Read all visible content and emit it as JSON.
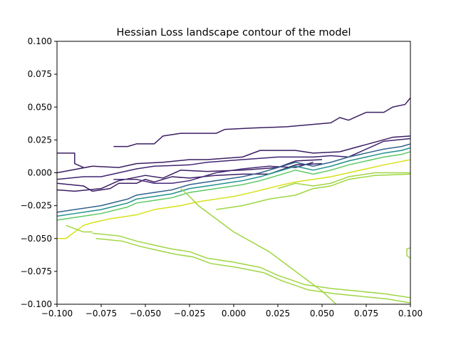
{
  "chart_data": {
    "type": "contour",
    "title": "Hessian Loss landscape contour of the model",
    "xlabel": "",
    "ylabel": "",
    "xlim": [
      -0.1,
      0.1
    ],
    "ylim": [
      -0.1,
      0.1
    ],
    "x_ticks": [
      -0.1,
      -0.075,
      -0.05,
      -0.025,
      0.0,
      0.025,
      0.05,
      0.075,
      0.1
    ],
    "x_tick_labels": [
      "−0.100",
      "−0.075",
      "−0.050",
      "−0.025",
      "0.000",
      "0.025",
      "0.050",
      "0.075",
      "0.100"
    ],
    "y_ticks": [
      0.1,
      0.075,
      0.05,
      0.025,
      0.0,
      -0.025,
      -0.05,
      -0.075,
      -0.1
    ],
    "y_tick_labels": [
      "0.100",
      "0.075",
      "0.050",
      "0.025",
      "0.000",
      "−0.025",
      "−0.050",
      "−0.075",
      "−0.100"
    ],
    "grid": false,
    "colormap": "viridis",
    "colors": {
      "dark_purple": "#3b1e63",
      "purple": "#472a7a",
      "blue": "#33638d",
      "teal": "#21918c",
      "green": "#5ec962",
      "yellow_green": "#9fd642",
      "yellow": "#d5e21a"
    },
    "contours": [
      {
        "color": "#3b1e63",
        "points": [
          [
            -0.1,
            0.015
          ],
          [
            -0.09,
            0.015
          ],
          [
            -0.09,
            0.007
          ],
          [
            -0.085,
            0.004
          ]
        ]
      },
      {
        "color": "#3b1e63",
        "points": [
          [
            -0.068,
            0.02
          ],
          [
            -0.068,
            0.02
          ],
          [
            -0.065,
            0.02
          ],
          [
            -0.06,
            0.02
          ],
          [
            -0.055,
            0.022
          ],
          [
            -0.045,
            0.022
          ],
          [
            -0.04,
            0.028
          ],
          [
            -0.03,
            0.03
          ],
          [
            -0.01,
            0.03
          ],
          [
            -0.005,
            0.033
          ],
          [
            0.01,
            0.034
          ],
          [
            0.03,
            0.035
          ],
          [
            0.055,
            0.038
          ],
          [
            0.06,
            0.042
          ],
          [
            0.065,
            0.04
          ],
          [
            0.075,
            0.046
          ],
          [
            0.085,
            0.046
          ],
          [
            0.09,
            0.05
          ],
          [
            0.097,
            0.052
          ],
          [
            0.1,
            0.057
          ]
        ]
      },
      {
        "color": "#3b1e63",
        "points": [
          [
            -0.1,
            0.0
          ],
          [
            -0.08,
            0.005
          ],
          [
            -0.065,
            0.004
          ],
          [
            -0.055,
            0.007
          ],
          [
            -0.04,
            0.008
          ],
          [
            -0.025,
            0.01
          ],
          [
            -0.015,
            0.01
          ],
          [
            0.005,
            0.012
          ],
          [
            0.015,
            0.017
          ],
          [
            0.035,
            0.017
          ],
          [
            0.045,
            0.015
          ],
          [
            0.06,
            0.016
          ],
          [
            0.09,
            0.027
          ],
          [
            0.1,
            0.028
          ]
        ]
      },
      {
        "color": "#3f2372",
        "points": [
          [
            -0.1,
            -0.005
          ],
          [
            -0.085,
            -0.003
          ],
          [
            -0.075,
            -0.003
          ],
          [
            -0.065,
            0.0
          ],
          [
            -0.055,
            0.003
          ],
          [
            -0.045,
            0.005
          ],
          [
            -0.025,
            0.006
          ],
          [
            -0.015,
            0.008
          ],
          [
            0.005,
            0.01
          ],
          [
            0.025,
            0.012
          ],
          [
            0.045,
            0.012
          ],
          [
            0.055,
            0.013
          ],
          [
            0.065,
            0.012
          ],
          [
            0.085,
            0.024
          ],
          [
            0.1,
            0.026
          ]
        ]
      },
      {
        "color": "#3b1e63",
        "points": [
          [
            -0.1,
            -0.008
          ],
          [
            -0.085,
            -0.01
          ],
          [
            -0.08,
            -0.014
          ],
          [
            -0.07,
            -0.012
          ],
          [
            -0.065,
            -0.008
          ],
          [
            -0.055,
            -0.008
          ],
          [
            -0.05,
            -0.005
          ],
          [
            -0.045,
            -0.007
          ],
          [
            -0.035,
            -0.003
          ],
          [
            -0.025,
            -0.004
          ],
          [
            -0.01,
            -0.002
          ],
          [
            0.005,
            -0.001
          ],
          [
            0.02,
            -0.001
          ],
          [
            0.035,
            0.006
          ],
          [
            0.05,
            0.007
          ]
        ]
      },
      {
        "color": "#3b1e63",
        "points": [
          [
            -0.1,
            -0.013
          ],
          [
            -0.09,
            -0.014
          ],
          [
            -0.075,
            -0.012
          ],
          [
            -0.065,
            -0.006
          ],
          [
            -0.05,
            -0.002
          ],
          [
            -0.04,
            -0.004
          ],
          [
            -0.03,
            0.002
          ],
          [
            -0.015,
            0.001
          ],
          [
            0.005,
            0.002
          ],
          [
            0.025,
            0.004
          ],
          [
            0.035,
            0.009
          ],
          [
            0.05,
            0.01
          ]
        ]
      },
      {
        "color": "#472a7a",
        "points": [
          [
            -0.068,
            -0.005
          ],
          [
            -0.055,
            -0.005
          ],
          [
            -0.045,
            -0.008
          ],
          [
            -0.035,
            -0.008
          ],
          [
            -0.025,
            -0.006
          ],
          [
            -0.01,
            0.0
          ],
          [
            0.005,
            0.003
          ],
          [
            0.02,
            0.005
          ],
          [
            0.035,
            0.004
          ],
          [
            0.045,
            0.008
          ]
        ]
      },
      {
        "color": "#33638d",
        "points": [
          [
            -0.1,
            -0.03
          ],
          [
            -0.09,
            -0.028
          ],
          [
            -0.075,
            -0.025
          ],
          [
            -0.06,
            -0.02
          ],
          [
            -0.055,
            -0.017
          ],
          [
            -0.045,
            -0.015
          ],
          [
            -0.035,
            -0.013
          ],
          [
            -0.025,
            -0.009
          ],
          [
            -0.015,
            -0.007
          ],
          [
            0.005,
            -0.003
          ],
          [
            0.015,
            -0.0
          ],
          [
            0.025,
            0.004
          ],
          [
            0.035,
            0.008
          ],
          [
            0.045,
            0.005
          ],
          [
            0.055,
            0.008
          ],
          [
            0.065,
            0.012
          ],
          [
            0.075,
            0.015
          ],
          [
            0.085,
            0.018
          ],
          [
            0.095,
            0.02
          ],
          [
            0.1,
            0.022
          ]
        ]
      },
      {
        "color": "#21918c",
        "points": [
          [
            -0.1,
            -0.033
          ],
          [
            -0.09,
            -0.031
          ],
          [
            -0.075,
            -0.028
          ],
          [
            -0.06,
            -0.023
          ],
          [
            -0.055,
            -0.02
          ],
          [
            -0.045,
            -0.018
          ],
          [
            -0.035,
            -0.016
          ],
          [
            -0.025,
            -0.012
          ],
          [
            -0.015,
            -0.01
          ],
          [
            0.005,
            -0.006
          ],
          [
            0.015,
            -0.003
          ],
          [
            0.025,
            0.001
          ],
          [
            0.035,
            0.005
          ],
          [
            0.045,
            0.002
          ],
          [
            0.055,
            0.005
          ],
          [
            0.065,
            0.009
          ],
          [
            0.075,
            0.012
          ],
          [
            0.085,
            0.015
          ],
          [
            0.095,
            0.017
          ],
          [
            0.1,
            0.019
          ]
        ]
      },
      {
        "color": "#5ec962",
        "points": [
          [
            -0.1,
            -0.036
          ],
          [
            -0.09,
            -0.034
          ],
          [
            -0.075,
            -0.031
          ],
          [
            -0.06,
            -0.026
          ],
          [
            -0.055,
            -0.023
          ],
          [
            -0.045,
            -0.021
          ],
          [
            -0.035,
            -0.019
          ],
          [
            -0.025,
            -0.015
          ],
          [
            -0.015,
            -0.013
          ],
          [
            0.005,
            -0.009
          ],
          [
            0.015,
            -0.006
          ],
          [
            0.025,
            -0.002
          ],
          [
            0.035,
            0.002
          ],
          [
            0.045,
            -0.001
          ],
          [
            0.055,
            0.002
          ],
          [
            0.065,
            0.006
          ],
          [
            0.075,
            0.009
          ],
          [
            0.085,
            0.012
          ],
          [
            0.095,
            0.014
          ],
          [
            0.1,
            0.016
          ]
        ]
      },
      {
        "color": "#d5e21a",
        "points": [
          [
            -0.1,
            -0.05
          ],
          [
            -0.095,
            -0.05
          ],
          [
            -0.09,
            -0.045
          ],
          [
            -0.085,
            -0.04
          ],
          [
            -0.08,
            -0.038
          ],
          [
            -0.07,
            -0.035
          ],
          [
            -0.055,
            -0.032
          ],
          [
            -0.045,
            -0.028
          ],
          [
            -0.03,
            -0.025
          ],
          [
            -0.02,
            -0.022
          ],
          [
            -0.01,
            -0.02
          ],
          [
            0.0,
            -0.018
          ],
          [
            0.01,
            -0.015
          ],
          [
            0.025,
            -0.01
          ],
          [
            0.035,
            -0.007
          ],
          [
            0.045,
            -0.005
          ],
          [
            0.055,
            -0.003
          ],
          [
            0.065,
            0.0
          ],
          [
            0.075,
            0.003
          ],
          [
            0.085,
            0.006
          ],
          [
            0.1,
            0.01
          ]
        ]
      },
      {
        "color": "#9fd642",
        "points": [
          [
            -0.095,
            -0.04
          ],
          [
            -0.085,
            -0.045
          ],
          [
            -0.08,
            -0.045
          ]
        ]
      },
      {
        "color": "#9fd642",
        "points": [
          [
            -0.03,
            -0.012
          ],
          [
            -0.025,
            -0.018
          ],
          [
            -0.02,
            -0.025
          ],
          [
            -0.015,
            -0.03
          ],
          [
            0.0,
            -0.045
          ],
          [
            0.02,
            -0.06
          ],
          [
            0.03,
            -0.07
          ],
          [
            0.04,
            -0.08
          ],
          [
            0.05,
            -0.09
          ],
          [
            0.058,
            -0.1
          ]
        ]
      },
      {
        "color": "#9fd642",
        "points": [
          [
            -0.08,
            -0.046
          ],
          [
            -0.065,
            -0.048
          ],
          [
            -0.055,
            -0.052
          ],
          [
            -0.045,
            -0.055
          ],
          [
            -0.035,
            -0.058
          ],
          [
            -0.025,
            -0.06
          ],
          [
            -0.015,
            -0.065
          ],
          [
            0.0,
            -0.068
          ],
          [
            0.015,
            -0.072
          ],
          [
            0.025,
            -0.078
          ],
          [
            0.04,
            -0.085
          ],
          [
            0.055,
            -0.088
          ],
          [
            0.07,
            -0.09
          ],
          [
            0.085,
            -0.092
          ],
          [
            0.1,
            -0.095
          ]
        ]
      },
      {
        "color": "#9fd642",
        "points": [
          [
            -0.078,
            -0.05
          ],
          [
            -0.063,
            -0.052
          ],
          [
            -0.053,
            -0.056
          ],
          [
            -0.043,
            -0.059
          ],
          [
            -0.033,
            -0.062
          ],
          [
            -0.023,
            -0.064
          ],
          [
            -0.013,
            -0.069
          ],
          [
            0.002,
            -0.072
          ],
          [
            0.017,
            -0.076
          ],
          [
            0.027,
            -0.082
          ],
          [
            0.042,
            -0.089
          ],
          [
            0.057,
            -0.092
          ],
          [
            0.072,
            -0.094
          ],
          [
            0.087,
            -0.096
          ],
          [
            0.1,
            -0.099
          ]
        ]
      },
      {
        "color": "#9fd642",
        "points": [
          [
            0.025,
            -0.012
          ],
          [
            0.035,
            -0.008
          ],
          [
            0.045,
            -0.01
          ],
          [
            0.055,
            -0.008
          ],
          [
            0.065,
            -0.003
          ],
          [
            0.08,
            0.0
          ],
          [
            0.1,
            0.0
          ]
        ]
      },
      {
        "color": "#9fd642",
        "points": [
          [
            -0.01,
            -0.028
          ],
          [
            0.005,
            -0.025
          ],
          [
            0.02,
            -0.02
          ],
          [
            0.035,
            -0.017
          ],
          [
            0.045,
            -0.012
          ],
          [
            0.055,
            -0.01
          ],
          [
            0.065,
            -0.005
          ],
          [
            0.08,
            -0.002
          ],
          [
            0.1,
            -0.001
          ]
        ]
      },
      {
        "color": "#9fd642",
        "points": [
          [
            0.1,
            -0.065
          ],
          [
            0.098,
            -0.063
          ],
          [
            0.098,
            -0.058
          ],
          [
            0.1,
            -0.057
          ]
        ]
      }
    ]
  }
}
